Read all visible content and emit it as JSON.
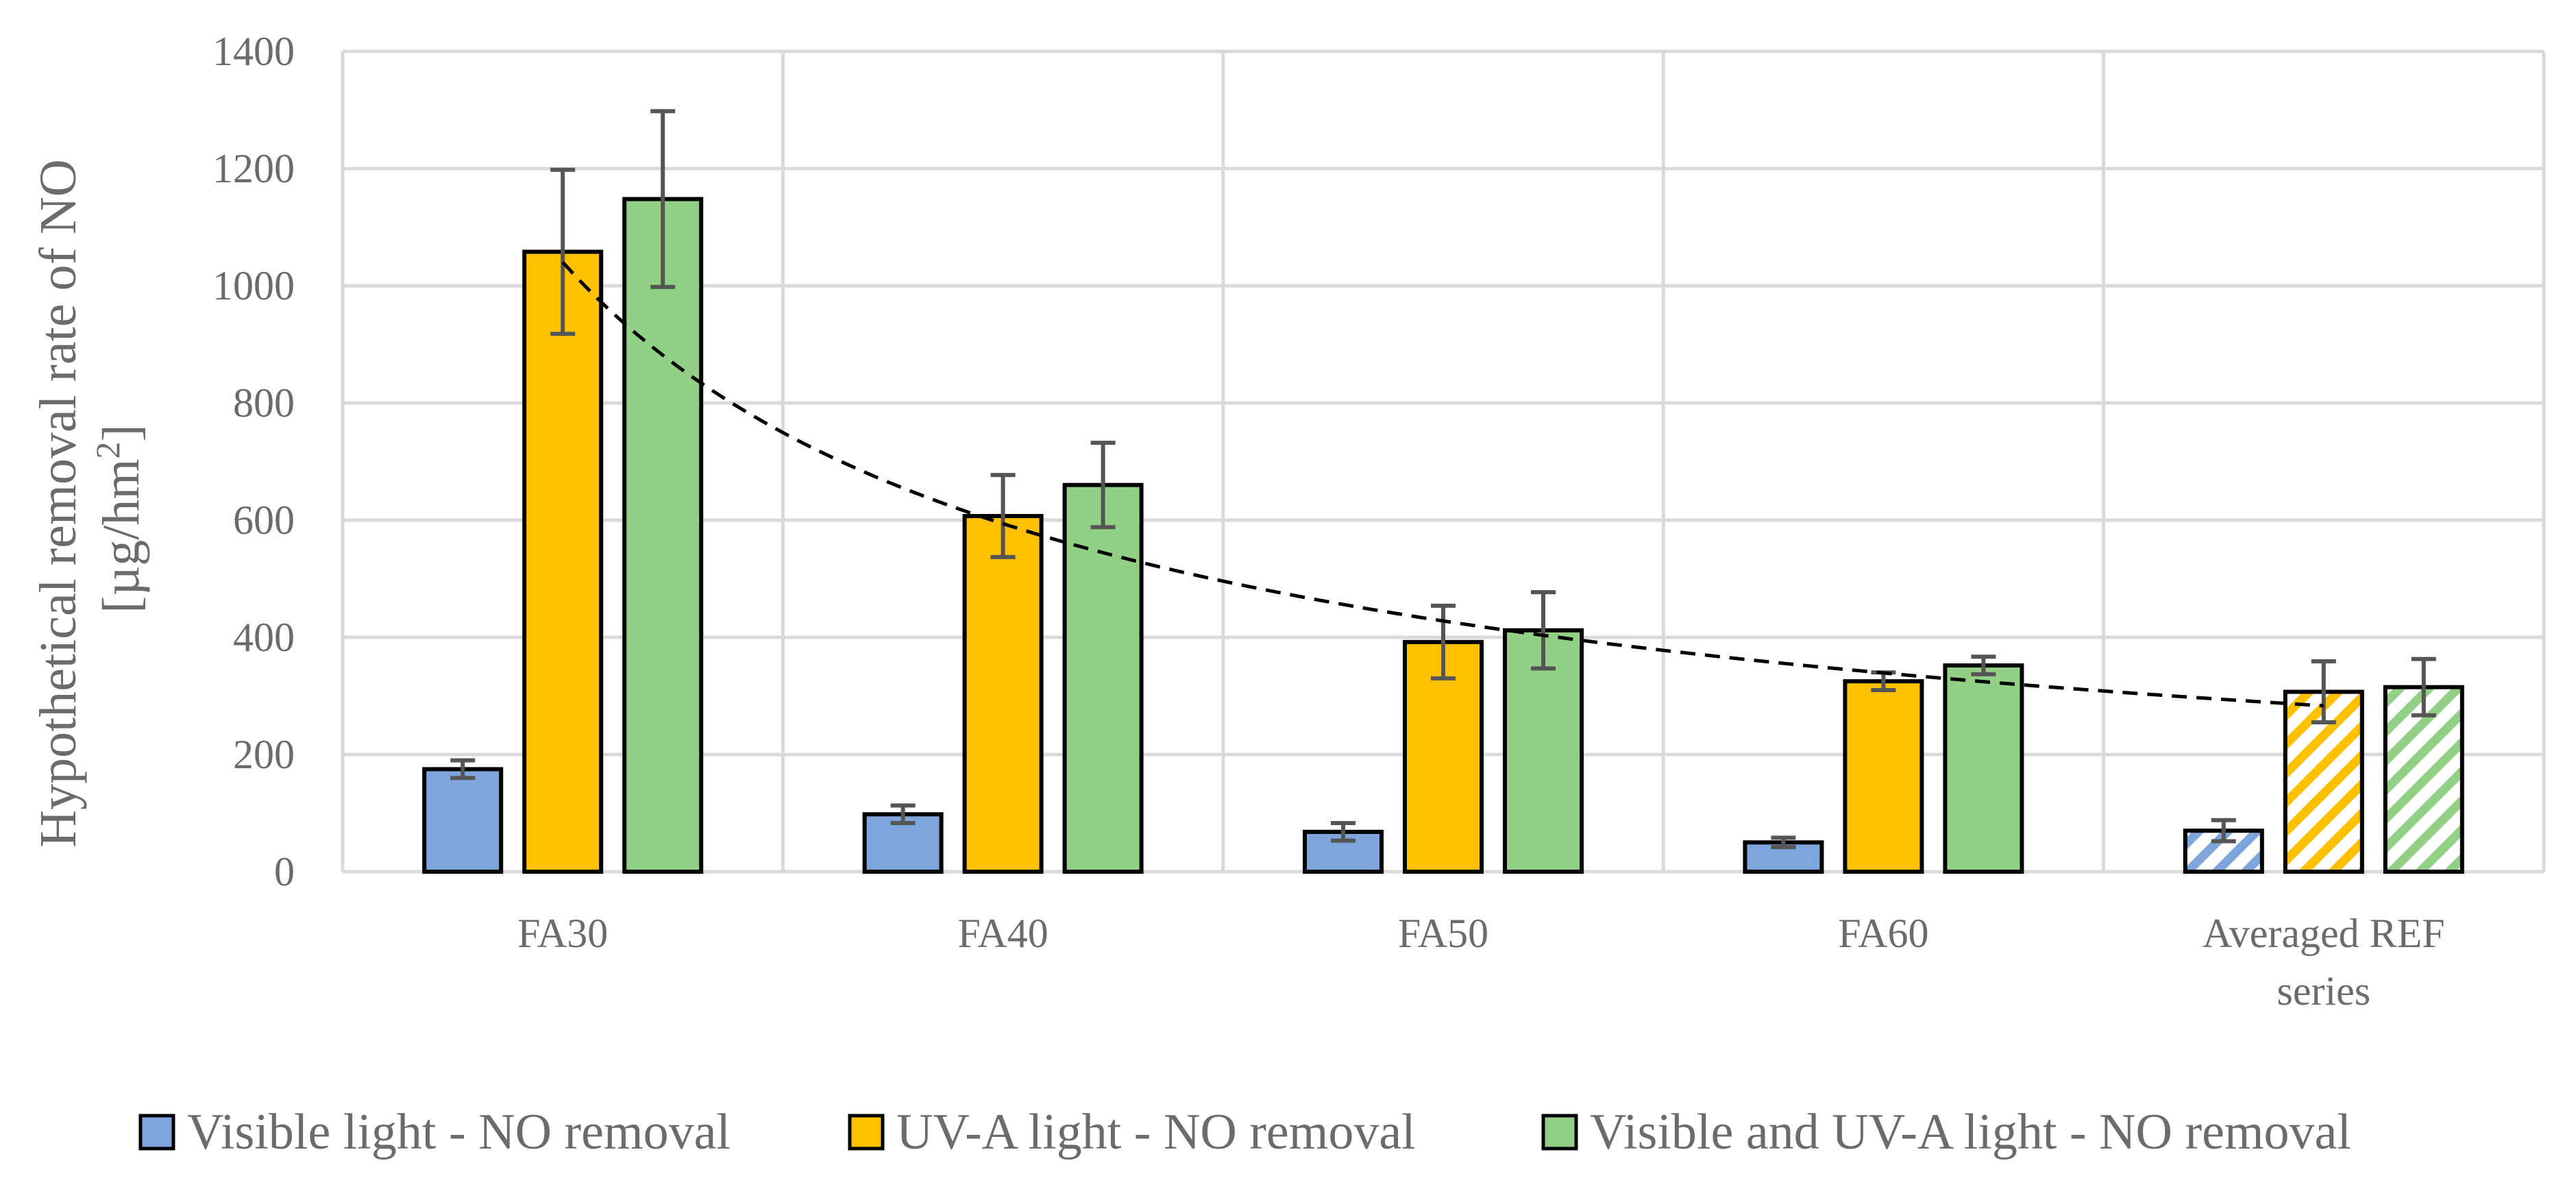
{
  "chart_data": {
    "type": "bar",
    "title": "",
    "categories": [
      "FA30",
      "FA40",
      "FA50",
      "FA60",
      "Averaged REF series"
    ],
    "category_label_lines": [
      [
        "FA30"
      ],
      [
        "FA40"
      ],
      [
        "FA50"
      ],
      [
        "FA60"
      ],
      [
        "Averaged REF",
        "series"
      ]
    ],
    "ylabel_line1": "Hypothetical removal rate of NO",
    "ylabel_line2": "[µg/hm",
    "ylabel_sup": "2",
    "ylabel_line2_end": "]",
    "xlabel": "",
    "ylim": [
      0,
      1400
    ],
    "yticks": [
      0,
      200,
      400,
      600,
      800,
      1000,
      1200,
      1400
    ],
    "grid": true,
    "legend_position": "bottom",
    "series": [
      {
        "name": "Visible light - NO removal",
        "color": "#7ea6dc",
        "values": [
          175,
          98,
          68,
          50,
          70
        ],
        "errors": [
          15,
          15,
          15,
          8,
          18
        ]
      },
      {
        "name": "UV-A light - NO removal",
        "color": "#ffc000",
        "values": [
          1058,
          607,
          392,
          325,
          307
        ],
        "errors": [
          140,
          70,
          62,
          15,
          52
        ]
      },
      {
        "name": "Visible and UV-A light - NO removal",
        "color": "#92d086",
        "values": [
          1148,
          660,
          412,
          352,
          315
        ],
        "errors": [
          150,
          72,
          65,
          15,
          48
        ]
      }
    ],
    "hatched_categories": [
      "Averaged REF series"
    ],
    "trendline": {
      "type": "power",
      "style": "dashed",
      "color": "#000000",
      "points": [
        [
          1,
          1040
        ],
        [
          2,
          600
        ],
        [
          3,
          420
        ],
        [
          4,
          340
        ],
        [
          5,
          285
        ]
      ]
    }
  }
}
